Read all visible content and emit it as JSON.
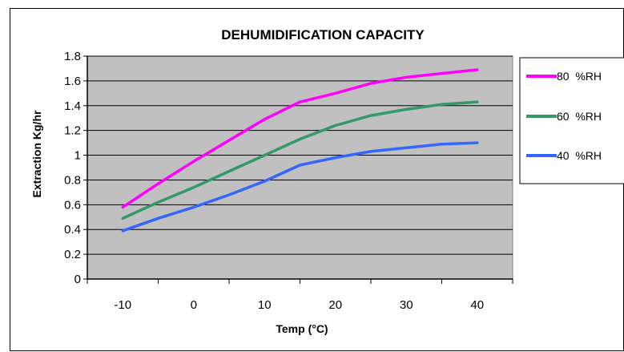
{
  "chart_data": {
    "type": "line",
    "title": "DEHUMIDIFICATION CAPACITY",
    "xlabel": "Temp (°C)",
    "ylabel": "Extraction Kg/hr",
    "x": [
      -10,
      -5,
      0,
      5,
      10,
      15,
      20,
      25,
      30,
      35,
      40
    ],
    "x_ticks": [
      -10,
      0,
      10,
      20,
      30,
      40
    ],
    "x_tick_labels": [
      "-10",
      "0",
      "10",
      "20",
      "30",
      "40"
    ],
    "xlim": [
      -15,
      45
    ],
    "ylim": [
      0,
      1.8
    ],
    "y_ticks": [
      0,
      0.2,
      0.4,
      0.6,
      0.8,
      1,
      1.2,
      1.4,
      1.6,
      1.8
    ],
    "y_tick_labels": [
      "0",
      "0.2",
      "0.4",
      "0.6",
      "0.8",
      "1",
      "1.2",
      "1.4",
      "1.6",
      "1.8"
    ],
    "grid": true,
    "plot_background": "#c0c0c0",
    "legend_position": "right",
    "series": [
      {
        "name": "80  %RH",
        "color": "#ff00ff",
        "values": [
          0.58,
          0.77,
          0.95,
          1.12,
          1.29,
          1.43,
          1.5,
          1.58,
          1.63,
          1.66,
          1.69
        ]
      },
      {
        "name": "60  %RH",
        "color": "#339966",
        "values": [
          0.49,
          0.62,
          0.74,
          0.87,
          1.0,
          1.13,
          1.24,
          1.32,
          1.37,
          1.41,
          1.43
        ]
      },
      {
        "name": "40  %RH",
        "color": "#3366ff",
        "values": [
          0.39,
          0.49,
          0.58,
          0.68,
          0.79,
          0.92,
          0.98,
          1.03,
          1.06,
          1.09,
          1.1
        ]
      }
    ]
  }
}
